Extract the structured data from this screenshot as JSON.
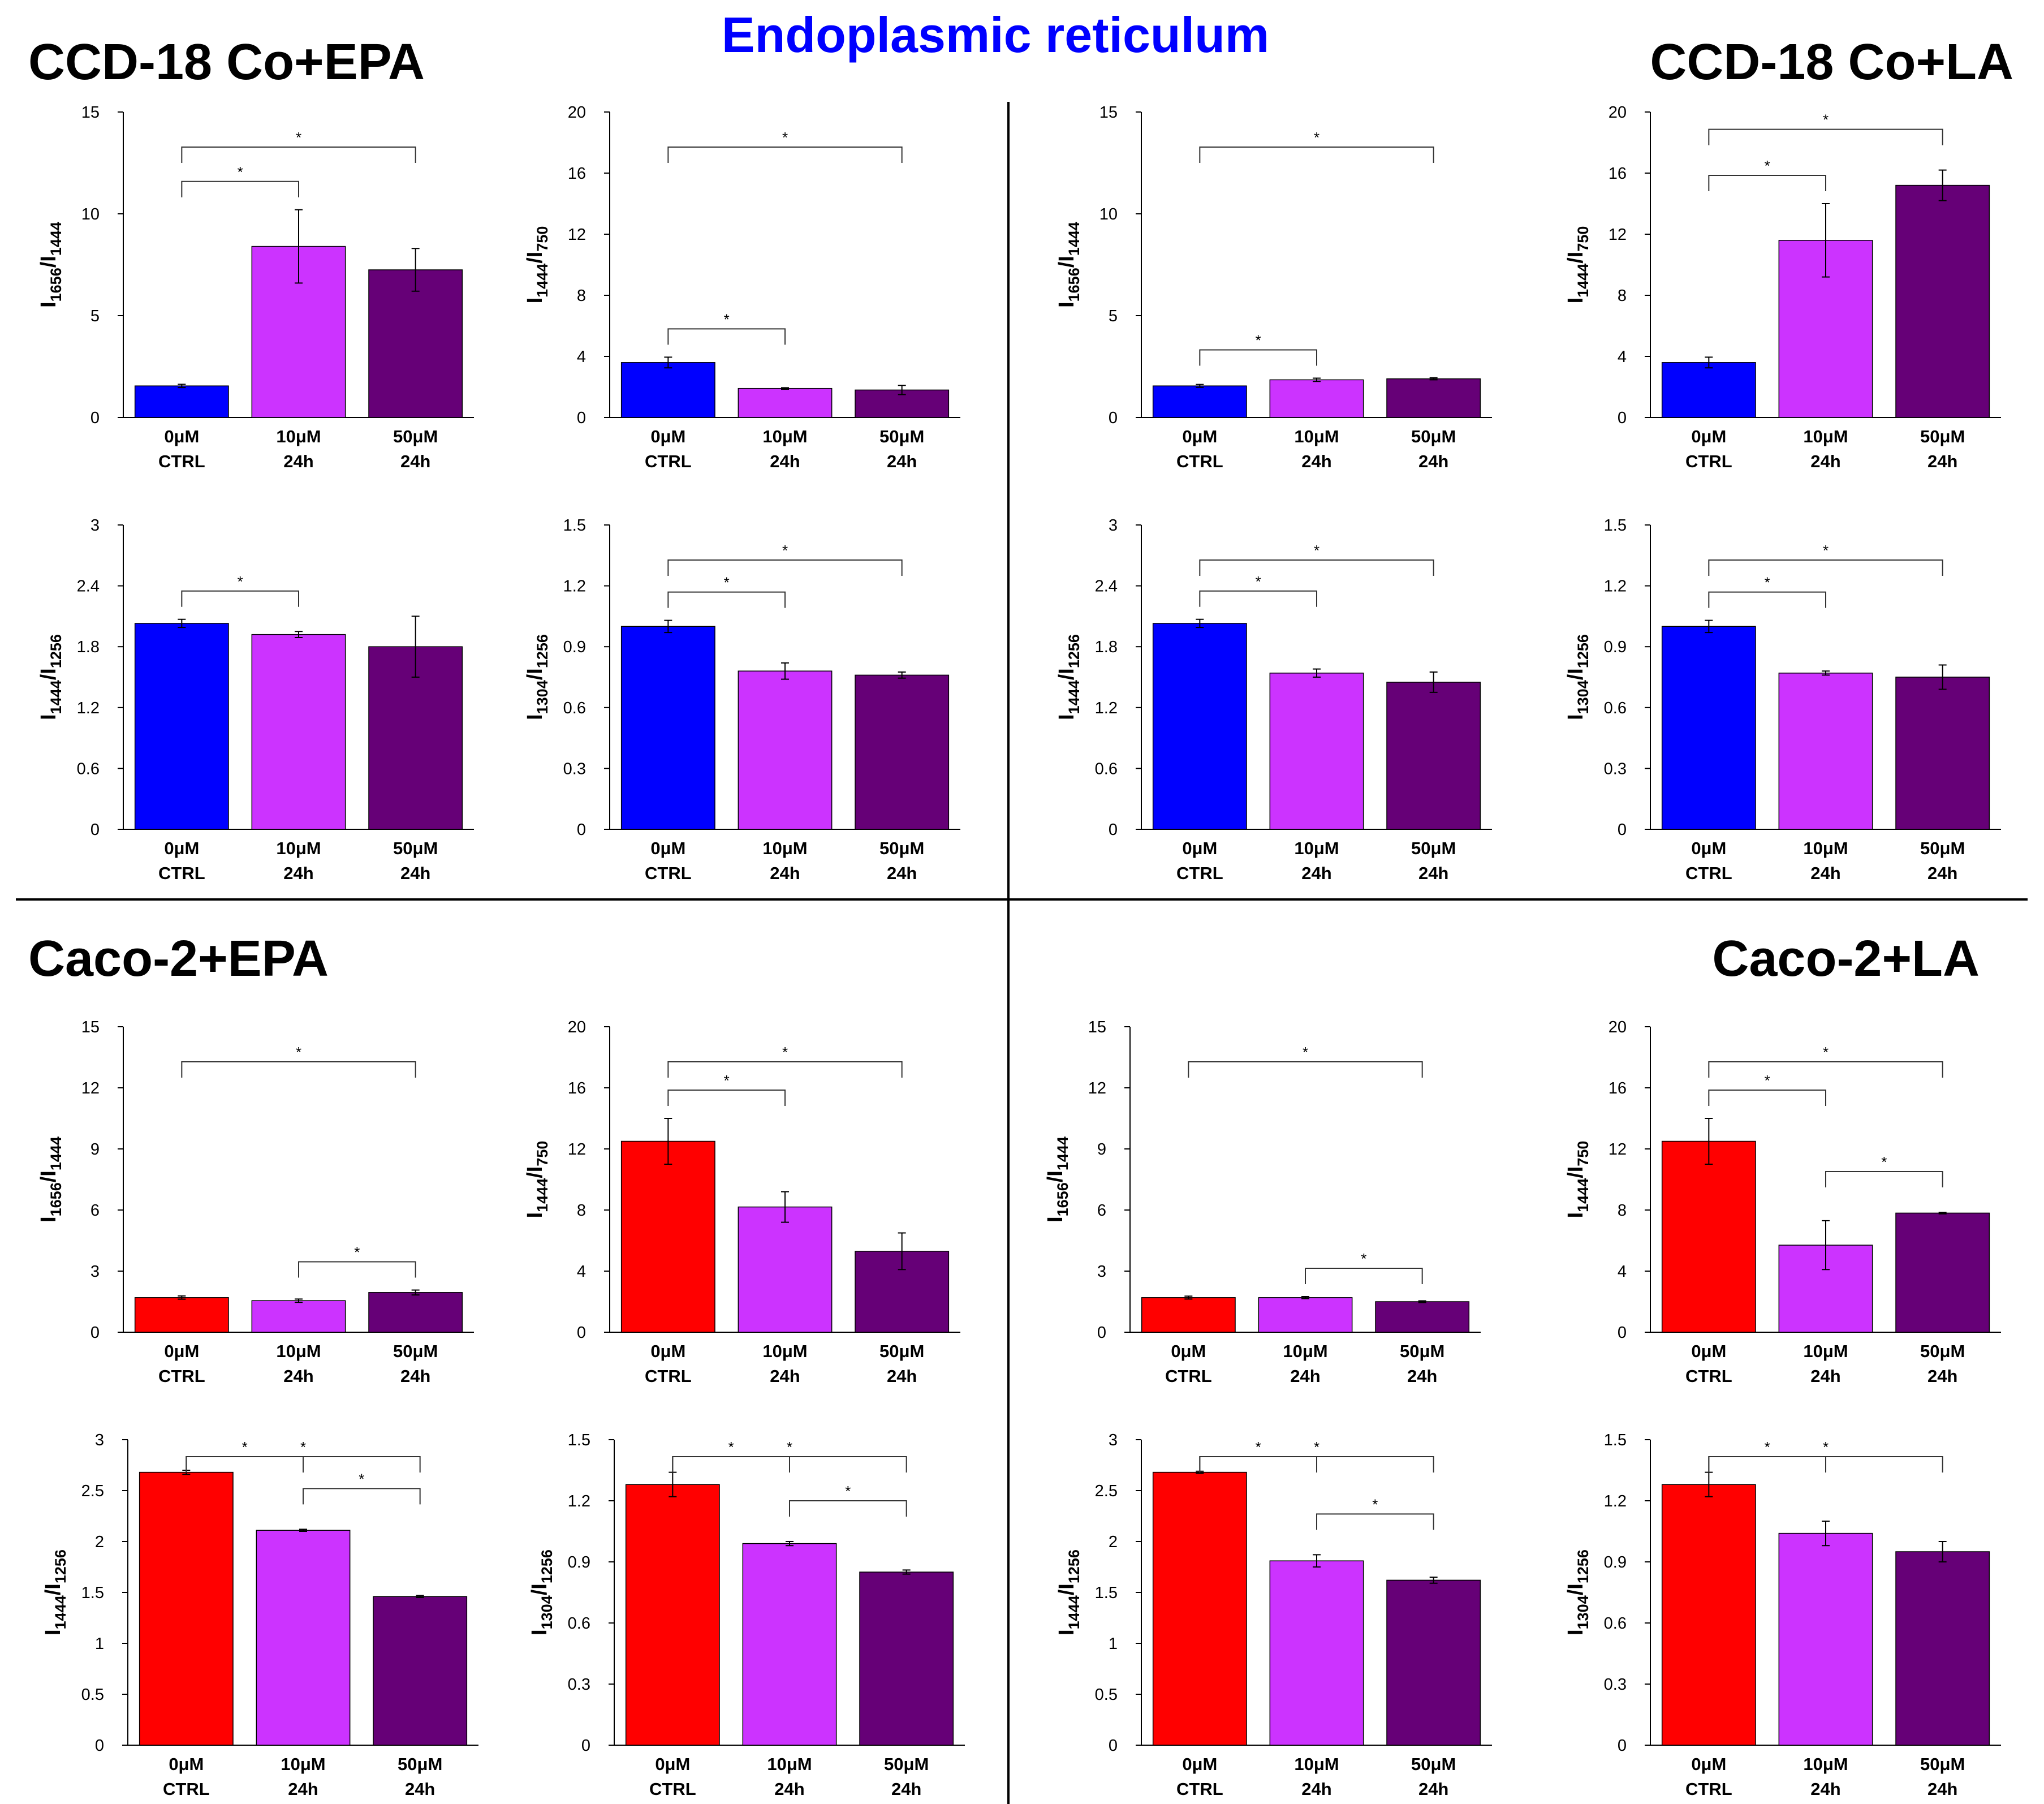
{
  "figure_title": "Endoplasmic reticulum",
  "panels": [
    {
      "id": "ccd-epa",
      "title": "CCD-18 Co+EPA"
    },
    {
      "id": "ccd-la",
      "title": "CCD-18 Co+LA"
    },
    {
      "id": "caco-epa",
      "title": "Caco-2+EPA"
    },
    {
      "id": "caco-la",
      "title": "Caco-2+LA"
    }
  ],
  "colors": {
    "ctrl_ccd": "#0000ff",
    "ctrl_caco": "#ff0000",
    "c10": "#cc33ff",
    "c50": "#660077"
  },
  "categories": [
    {
      "top": "0μM",
      "bottom": "CTRL"
    },
    {
      "top": "10μM",
      "bottom": "24h"
    },
    {
      "top": "50μM",
      "bottom": "24h"
    }
  ],
  "ylabels": {
    "r1656": {
      "main": "I",
      "sub1": "1656",
      "sep": "/I",
      "sub2": "1444"
    },
    "r1444_750": {
      "main": "I",
      "sub1": "1444",
      "sep": "/I",
      "sub2": "750"
    },
    "r1444_1256": {
      "main": "I",
      "sub1": "1444",
      "sep": "/I",
      "sub2": "1256"
    },
    "r1304": {
      "main": "I",
      "sub1": "1304",
      "sep": "/I",
      "sub2": "1256"
    }
  },
  "chart_data": [
    {
      "id": "ccd-epa-a",
      "panel": "ccd-epa",
      "type": "bar",
      "ylabel": "r1656",
      "ylim": [
        0,
        15
      ],
      "yticks": [
        "0",
        "5",
        "10",
        "15"
      ],
      "ctrl": "ctrl_ccd",
      "values": [
        1.55,
        8.4,
        7.25
      ],
      "errors": [
        0.08,
        1.8,
        1.05
      ],
      "sig": [
        {
          "from": 0,
          "to": 1,
          "label": "*"
        },
        {
          "from": 0,
          "to": 2,
          "label": "*"
        }
      ]
    },
    {
      "id": "ccd-epa-b",
      "panel": "ccd-epa",
      "type": "bar",
      "ylabel": "r1444_750",
      "ylim": [
        0,
        20
      ],
      "yticks": [
        "0",
        "4",
        "8",
        "12",
        "16",
        "20"
      ],
      "ctrl": "ctrl_ccd",
      "values": [
        3.6,
        1.9,
        1.8
      ],
      "errors": [
        0.35,
        0.05,
        0.3
      ],
      "sig": [
        {
          "from": 0,
          "to": 1,
          "label": "*"
        },
        {
          "from": 0,
          "to": 2,
          "label": "*"
        }
      ]
    },
    {
      "id": "ccd-la-a",
      "panel": "ccd-la",
      "type": "bar",
      "ylabel": "r1656",
      "ylim": [
        0,
        15
      ],
      "yticks": [
        "0",
        "5",
        "10",
        "15"
      ],
      "ctrl": "ctrl_ccd",
      "values": [
        1.55,
        1.85,
        1.9
      ],
      "errors": [
        0.07,
        0.08,
        0.05
      ],
      "sig": [
        {
          "from": 0,
          "to": 1,
          "label": "*"
        },
        {
          "from": 0,
          "to": 2,
          "label": "*"
        }
      ]
    },
    {
      "id": "ccd-la-b",
      "panel": "ccd-la",
      "type": "bar",
      "ylabel": "r1444_750",
      "ylim": [
        0,
        20
      ],
      "yticks": [
        "0",
        "4",
        "8",
        "12",
        "16",
        "20"
      ],
      "ctrl": "ctrl_ccd",
      "values": [
        3.6,
        11.6,
        15.2
      ],
      "errors": [
        0.35,
        2.4,
        1.0
      ],
      "sig": [
        {
          "from": 0,
          "to": 1,
          "label": "*"
        },
        {
          "from": 0,
          "to": 2,
          "label": "*"
        }
      ]
    },
    {
      "id": "ccd-epa-c",
      "panel": "ccd-epa",
      "type": "bar",
      "ylabel": "r1444_1256",
      "ylim": [
        0,
        3
      ],
      "yticks": [
        "0",
        "0.6",
        "1.2",
        "1.8",
        "2.4",
        "3"
      ],
      "ctrl": "ctrl_ccd",
      "values": [
        2.03,
        1.92,
        1.8
      ],
      "errors": [
        0.04,
        0.03,
        0.3
      ],
      "sig": [
        {
          "from": 0,
          "to": 1,
          "label": "*"
        }
      ]
    },
    {
      "id": "ccd-epa-d",
      "panel": "ccd-epa",
      "type": "bar",
      "ylabel": "r1304",
      "ylim": [
        0,
        1.5
      ],
      "yticks": [
        "0",
        "0.3",
        "0.6",
        "0.9",
        "1.2",
        "1.5"
      ],
      "ctrl": "ctrl_ccd",
      "values": [
        1.0,
        0.78,
        0.76
      ],
      "errors": [
        0.03,
        0.04,
        0.015
      ],
      "sig": [
        {
          "from": 0,
          "to": 1,
          "label": "*"
        },
        {
          "from": 0,
          "to": 2,
          "label": "*"
        }
      ]
    },
    {
      "id": "ccd-la-c",
      "panel": "ccd-la",
      "type": "bar",
      "ylabel": "r1444_1256",
      "ylim": [
        0,
        3
      ],
      "yticks": [
        "0",
        "0.6",
        "1.2",
        "1.8",
        "2.4",
        "3"
      ],
      "ctrl": "ctrl_ccd",
      "values": [
        2.03,
        1.54,
        1.45
      ],
      "errors": [
        0.04,
        0.04,
        0.1
      ],
      "sig": [
        {
          "from": 0,
          "to": 1,
          "label": "*"
        },
        {
          "from": 0,
          "to": 2,
          "label": "*"
        }
      ]
    },
    {
      "id": "ccd-la-d",
      "panel": "ccd-la",
      "type": "bar",
      "ylabel": "r1304",
      "ylim": [
        0,
        1.5
      ],
      "yticks": [
        "0",
        "0.3",
        "0.6",
        "0.9",
        "1.2",
        "1.5"
      ],
      "ctrl": "ctrl_ccd",
      "values": [
        1.0,
        0.77,
        0.75
      ],
      "errors": [
        0.03,
        0.01,
        0.06
      ],
      "sig": [
        {
          "from": 0,
          "to": 1,
          "label": "*"
        },
        {
          "from": 0,
          "to": 2,
          "label": "*"
        }
      ]
    },
    {
      "id": "caco-epa-a",
      "panel": "caco-epa",
      "type": "bar",
      "ylabel": "r1656",
      "ylim": [
        0,
        15
      ],
      "yticks": [
        "0",
        "3",
        "6",
        "9",
        "12",
        "15"
      ],
      "ctrl": "ctrl_caco",
      "values": [
        1.7,
        1.55,
        1.95
      ],
      "errors": [
        0.08,
        0.08,
        0.12
      ],
      "sig": [
        {
          "from": 1,
          "to": 2,
          "label": "*"
        },
        {
          "from": 0,
          "to": 2,
          "label": "*"
        }
      ]
    },
    {
      "id": "caco-epa-b",
      "panel": "caco-epa",
      "type": "bar",
      "ylabel": "r1444_750",
      "ylim": [
        0,
        20
      ],
      "yticks": [
        "0",
        "4",
        "8",
        "12",
        "16",
        "20"
      ],
      "ctrl": "ctrl_caco",
      "values": [
        12.5,
        8.2,
        5.3
      ],
      "errors": [
        1.5,
        1.0,
        1.2
      ],
      "sig": [
        {
          "from": 0,
          "to": 1,
          "label": "*"
        },
        {
          "from": 0,
          "to": 2,
          "label": "*"
        }
      ]
    },
    {
      "id": "caco-la-a",
      "panel": "caco-la",
      "type": "bar",
      "ylabel": "r1656",
      "ylim": [
        0,
        15
      ],
      "yticks": [
        "0",
        "3",
        "6",
        "9",
        "12",
        "15"
      ],
      "ctrl": "ctrl_caco",
      "values": [
        1.7,
        1.7,
        1.5
      ],
      "errors": [
        0.07,
        0.05,
        0.04
      ],
      "sig": [
        {
          "from": 1,
          "to": 2,
          "label": "*"
        },
        {
          "from": 0,
          "to": 2,
          "label": "*"
        }
      ]
    },
    {
      "id": "caco-la-b",
      "panel": "caco-la",
      "type": "bar",
      "ylabel": "r1444_750",
      "ylim": [
        0,
        20
      ],
      "yticks": [
        "0",
        "4",
        "8",
        "12",
        "16",
        "20"
      ],
      "ctrl": "ctrl_caco",
      "values": [
        12.5,
        5.7,
        7.8
      ],
      "errors": [
        1.5,
        1.6,
        0.05
      ],
      "sig": [
        {
          "from": 0,
          "to": 1,
          "label": "*"
        },
        {
          "from": 1,
          "to": 2,
          "label": "*"
        },
        {
          "from": 0,
          "to": 2,
          "label": "*"
        }
      ]
    },
    {
      "id": "caco-epa-c",
      "panel": "caco-epa",
      "type": "bar",
      "ylabel": "r1444_1256",
      "ylim": [
        0,
        3
      ],
      "yticks": [
        "0",
        "0.5",
        "1",
        "1.5",
        "2",
        "2.5",
        "3"
      ],
      "ctrl": "ctrl_caco",
      "values": [
        2.68,
        2.11,
        1.46
      ],
      "errors": [
        0.02,
        0.01,
        0.01
      ],
      "sig": [
        {
          "from": 0,
          "to": 1,
          "label": "*"
        },
        {
          "from": 1,
          "to": 2,
          "label": "*"
        },
        {
          "from": 0,
          "to": 2,
          "label": "*"
        }
      ]
    },
    {
      "id": "caco-epa-d",
      "panel": "caco-epa",
      "type": "bar",
      "ylabel": "r1304",
      "ylim": [
        0,
        1.5
      ],
      "yticks": [
        "0",
        "0.3",
        "0.6",
        "0.9",
        "1.2",
        "1.5"
      ],
      "ctrl": "ctrl_caco",
      "values": [
        1.28,
        0.99,
        0.85
      ],
      "errors": [
        0.06,
        0.01,
        0.01
      ],
      "sig": [
        {
          "from": 0,
          "to": 1,
          "label": "*"
        },
        {
          "from": 1,
          "to": 2,
          "label": "*"
        },
        {
          "from": 0,
          "to": 2,
          "label": "*"
        }
      ]
    },
    {
      "id": "caco-la-c",
      "panel": "caco-la",
      "type": "bar",
      "ylabel": "r1444_1256",
      "ylim": [
        0,
        3
      ],
      "yticks": [
        "0",
        "0.5",
        "1",
        "1.5",
        "2",
        "2.5",
        "3"
      ],
      "ctrl": "ctrl_caco",
      "values": [
        2.68,
        1.81,
        1.62
      ],
      "errors": [
        0.01,
        0.06,
        0.03
      ],
      "sig": [
        {
          "from": 0,
          "to": 1,
          "label": "*"
        },
        {
          "from": 1,
          "to": 2,
          "label": "*"
        },
        {
          "from": 0,
          "to": 2,
          "label": "*"
        }
      ]
    },
    {
      "id": "caco-la-d",
      "panel": "caco-la",
      "type": "bar",
      "ylabel": "r1304",
      "ylim": [
        0,
        1.5
      ],
      "yticks": [
        "0",
        "0.3",
        "0.6",
        "0.9",
        "1.2",
        "1.5"
      ],
      "ctrl": "ctrl_caco",
      "values": [
        1.28,
        1.04,
        0.95
      ],
      "errors": [
        0.06,
        0.06,
        0.05
      ],
      "sig": [
        {
          "from": 0,
          "to": 1,
          "label": "*"
        },
        {
          "from": 0,
          "to": 2,
          "label": "*"
        }
      ]
    }
  ]
}
